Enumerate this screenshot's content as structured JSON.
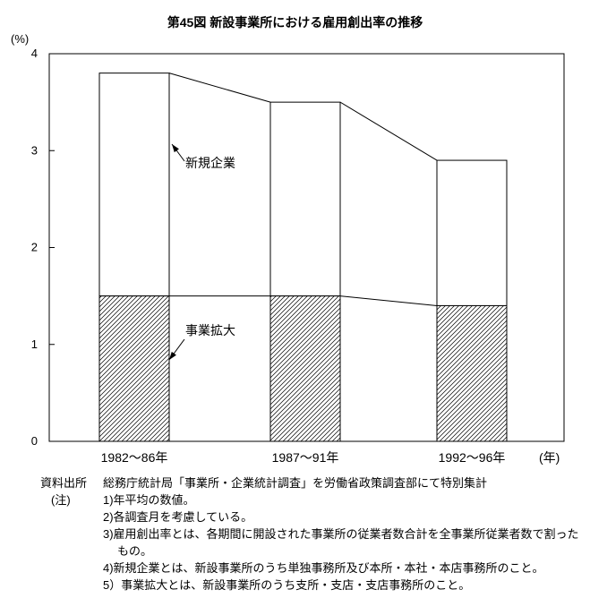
{
  "page": {
    "title": "第45図 新設事業所における雇用創出率の推移"
  },
  "chart_data": {
    "type": "bar",
    "stacked": true,
    "title": "第45図 新設事業所における雇用創出率の推移",
    "categories": [
      "1982〜86年",
      "1987〜91年",
      "1992〜96年"
    ],
    "series": [
      {
        "name": "事業拡大",
        "values": [
          1.5,
          1.5,
          1.4
        ],
        "fill": "hatched"
      },
      {
        "name": "新規企業",
        "values": [
          2.3,
          2.0,
          1.5
        ],
        "fill": "white"
      }
    ],
    "totals": [
      3.8,
      3.5,
      2.9
    ],
    "ylabel": "(%)",
    "xlabel": "(年)",
    "ylim": [
      0,
      4
    ],
    "yticks": [
      0,
      1,
      2,
      3,
      4
    ],
    "grid": false,
    "legend_position": "none",
    "annotations": [
      {
        "label": "新規企業",
        "target": "upper-segment"
      },
      {
        "label": "事業拡大",
        "target": "lower-segment"
      }
    ]
  },
  "notes": {
    "source_label": "資料出所",
    "source_text": "総務庁統計局「事業所・企業統計調査」を労働省政策調査部にて特別集計",
    "note_label": "(注)",
    "items": [
      "1)年平均の数値。",
      "2)各調査月を考慮している。",
      "3)雇用創出率とは、各期間に開設された事業所の従業者数合計を全事業所従業者数で割ったもの。",
      "4)新規企業とは、新設事業所のうち単独事務所及び本所・本社・本店事務所のこと。",
      "5）事業拡大とは、新設事業所のうち支所・支店・支店事務所のこと。"
    ]
  }
}
